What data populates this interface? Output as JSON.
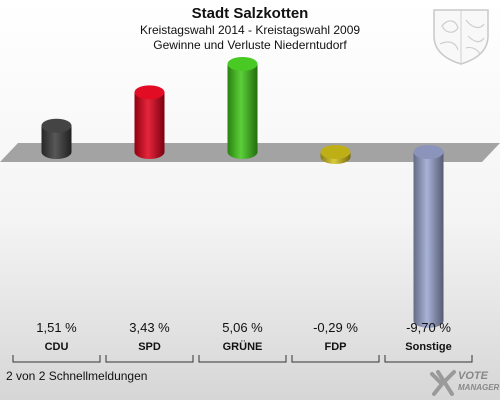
{
  "header": {
    "title": "Stadt Salzkotten",
    "subtitle1": "Kreistagswahl 2014 - Kreistagswahl 2009",
    "subtitle2": "Gewinne und Verluste Niederntudorf"
  },
  "footer": {
    "text": "2 von 2 Schnellmeldungen"
  },
  "brand": {
    "line1": "VOTE",
    "line2": "MANAGER"
  },
  "chart_data": {
    "type": "bar",
    "categories": [
      "CDU",
      "SPD",
      "GRÜNE",
      "FDP",
      "Sonstige"
    ],
    "values": [
      1.51,
      3.43,
      5.06,
      -0.29,
      -9.7
    ],
    "value_labels": [
      "1,51 %",
      "3,43 %",
      "5,06 %",
      "-0,29 %",
      "-9,70 %"
    ],
    "colors": [
      "#3a3a3a",
      "#e0001a",
      "#3fc617",
      "#d4c21a",
      "#9aa6d0"
    ],
    "ylim": [
      -9.7,
      5.06
    ],
    "grid": false,
    "legend": "none"
  }
}
